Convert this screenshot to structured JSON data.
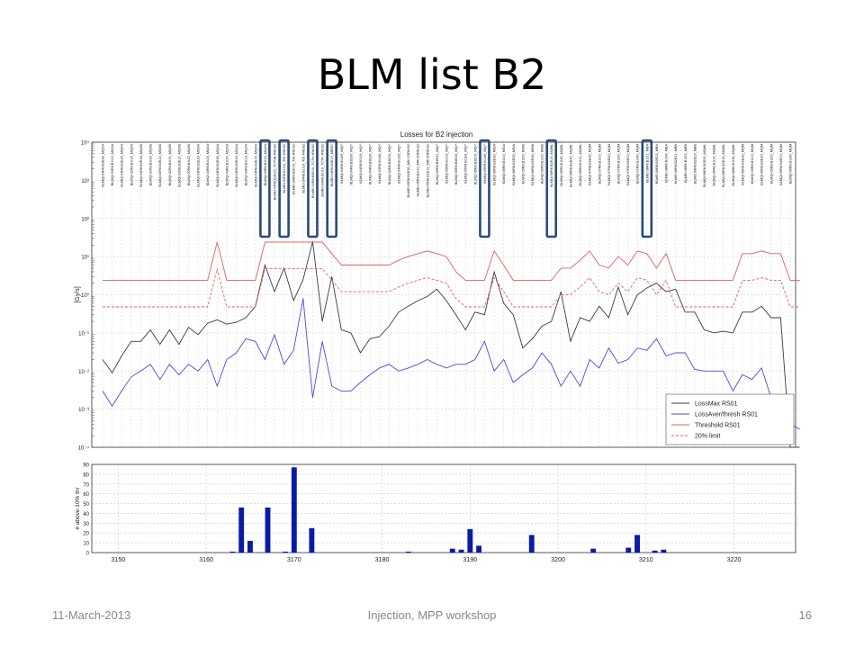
{
  "slide": {
    "title": "BLM list B2",
    "footer_date": "11-March-2013",
    "footer_event": "Injection, MPP workshop",
    "page_number": "16"
  },
  "colors": {
    "lossmax": "#3a3a3a",
    "lossaver": "#4a4ad8",
    "threshold": "#e06060",
    "limit": "#e06060",
    "bars": "#0a1aa8",
    "highlight": "#2a4a7a"
  },
  "chart_data": [
    {
      "type": "line",
      "title": "Losses for B2 injection",
      "ylabel": "[Gy/s]",
      "yscale": "log",
      "ylim": [
        0.0001,
        10000
      ],
      "y_ticks": [
        "10⁻⁴",
        "10⁻³",
        "10⁻²",
        "10⁻¹",
        "10⁰",
        "10¹",
        "10²",
        "10³",
        "10⁴"
      ],
      "grid": true,
      "legend_position": "lower-right",
      "monitor_labels": [
        "BLMQI.03R8.B2E30_MQXA",
        "BLMQI.03R8.B1I10_MQXA",
        "BLMQI.03R8.B2E20_MQXA",
        "BLMQI.02R8.B1I10_MQXA",
        "BLMQI.02R8.B2E30_MQXB",
        "BLMQI.02R8.B1I20_MQXB",
        "BLMQI.02R8.B2E22_MQXB",
        "BLMQI.02R8.B1I21_MQXB",
        "BLMQI.02R8.B2E21_MQXB",
        "BLMQI.02R8.B1I22_MQXB",
        "BLMQI.03R8.B2E23_MQXA",
        "BLMQI.03R8.B1I23_MQXA",
        "BLMQI.03R8.B2E30_MQXA",
        "BLMQI.03R8.B1I20_MQXA",
        "BLMQI.03R8.B2E20_MQXA",
        "BLMQI.03R8.B1I10_MQXA",
        "BLMQI.03R8.B2E10_MQXA",
        "BLMQI.03R8.B1I20_MQXA",
        "BLMEI.04R8.B2E20_TCTVB.4R8.B2",
        "BLMEI.04R8.B1I10_TDI.4R8.B2",
        "BLMEI.04R8.B2E10_TDI.4R8.B2",
        "BLMEI.04R8.B1I10_TDI.4R8.B2",
        "BLMEI.04R8.B2E10_TCTH.4R8.B2",
        "BLMEI.04R8.B1I10_TCTH.4R8.B2",
        "BLMEI.04R8.B2E10_MBRC",
        "BLMQI.04R8.B1I20_MQY",
        "BLMQI.04R8.B2E30_MQY",
        "BLMQI.04R8.B1I10_MQY",
        "BLMQI.04R8.B2E20_MQY",
        "BLMQI.04R8.B1I30_MQY",
        "BLMQI.04R8.B2E10_MQY",
        "BLMQI.04R8.B1I20_MQY",
        "BLMEI.05R8.B2E20_MKI.C5R8.B2",
        "BLMEI.05R8.B1I10_MKI.D5R8.B2",
        "BLMEI.05R8.B2E10_MKI.D5R8.B2",
        "BLMQI.05R8.B2E31_MQY",
        "BLMQI.05R8.B1I10_MQY",
        "BLMQI.05R8.B2E20_MQY",
        "BLMQI.05R8.B1I20_MQY",
        "BLMQI.05R8.B2E10_MQY",
        "BLMQI.05R8.B1I30_MQY",
        "BLMQI.06R8.B2E30_MSIA",
        "BLMQI.06R8.B1I10_MSIA",
        "BLMQI.06R8.B2E20_MSIA",
        "BLMQI.06R8.B1I20_MSIB",
        "BLMQI.06R8.B2E30_MSIB",
        "BLMQI.06R8.B1I10_MSIB",
        "BLMQI.06R8.B2E10_MQML",
        "BLMQI.06R8.B1I30_MQML",
        "BLMQI.06R8.B2E20_MQML",
        "BLMQI.06R8.B1I10_MQML",
        "BLMQI.07R8.B2E30_MQM",
        "BLMQI.07R8.B1I10_MQM",
        "BLMQI.07R8.B2E20_MQM",
        "BLMQI.07R8.B1I20_MQM",
        "BLMQI.07R8.B2E10_MQM",
        "BLMQI.07R8.B1I30_MQM",
        "BLMEI.08R8.B1I21_MBA",
        "BLMEI.08R8.B2E22_MBA",
        "BLMEI.08R8.B1I30_MBA",
        "BLMEI.08R8.B2E21_MBB",
        "BLMEI.08R8.B1I22_MBB",
        "BLMEI.08R8.B2E23_MBB",
        "BLMQI.08R8.B2E20_MQML",
        "BLMQI.08R8.B1I10_MQML",
        "BLMQI.08R8.B2E10_MQML",
        "BLMQI.08R8.B1I30_MQML",
        "BLMQI.09R8.B2E30_MQM",
        "BLMQI.09R8.B1I10_MQM",
        "BLMQI.09R8.B2E20_MQM",
        "BLMQI.09R8.B1I20_MQM",
        "BLMQI.09R8.B2E10_MQM",
        "BLMQI.09R8.B1I30_MQM"
      ],
      "series": [
        {
          "name": "LossMax RS01",
          "style": "solid",
          "values": [
            0.02,
            0.009,
            0.025,
            0.06,
            0.06,
            0.12,
            0.05,
            0.12,
            0.05,
            0.14,
            0.09,
            0.18,
            0.22,
            0.17,
            0.19,
            0.25,
            0.5,
            6,
            1.2,
            5,
            0.7,
            2.5,
            25,
            0.2,
            3,
            0.12,
            0.1,
            0.03,
            0.07,
            0.08,
            0.15,
            0.35,
            0.5,
            0.7,
            0.9,
            1.4,
            0.7,
            0.3,
            0.12,
            0.35,
            0.3,
            4,
            0.6,
            0.3,
            0.04,
            0.07,
            0.15,
            0.2,
            1.2,
            0.06,
            0.25,
            0.2,
            0.5,
            0.25,
            1.6,
            0.3,
            1,
            1.5,
            2,
            1.2,
            1.4,
            0.35,
            0.35,
            0.12,
            0.1,
            0.11,
            0.1,
            0.35,
            0.35,
            0.5,
            0.25,
            0.25,
            0.0001,
            0.0001
          ]
        },
        {
          "name": "LossAver/thresh RS01",
          "style": "solid",
          "values": [
            0.003,
            0.0012,
            0.003,
            0.007,
            0.01,
            0.015,
            0.006,
            0.015,
            0.008,
            0.015,
            0.01,
            0.02,
            0.004,
            0.02,
            0.03,
            0.07,
            0.06,
            0.02,
            0.09,
            0.015,
            0.035,
            0.8,
            0.002,
            0.06,
            0.004,
            0.003,
            0.003,
            0.005,
            0.008,
            0.012,
            0.015,
            0.01,
            0.012,
            0.015,
            0.02,
            0.015,
            0.012,
            0.015,
            0.015,
            0.02,
            0.06,
            0.01,
            0.02,
            0.005,
            0.008,
            0.012,
            0.03,
            0.015,
            0.004,
            0.01,
            0.004,
            0.02,
            0.012,
            0.04,
            0.016,
            0.02,
            0.04,
            0.035,
            0.07,
            0.025,
            0.03,
            0.03,
            0.011,
            0.01,
            0.01,
            0.01,
            0.003,
            0.008,
            0.006,
            0.012,
            0.002,
            0.0015,
            0.0004,
            0.0003
          ]
        },
        {
          "name": "Threshold RS01",
          "style": "solid",
          "values": [
            2.4,
            2.4,
            2.4,
            2.4,
            2.4,
            2.4,
            2.4,
            2.4,
            2.4,
            2.4,
            2.4,
            2.4,
            24,
            2.4,
            2.4,
            2.4,
            2.4,
            24,
            24,
            24,
            24,
            24,
            24,
            24,
            12,
            6,
            6,
            6,
            6,
            6,
            6,
            8,
            10,
            12,
            14,
            12,
            10,
            4,
            2.4,
            2.4,
            2.4,
            14,
            6,
            2.4,
            2.4,
            2.4,
            2.4,
            2.4,
            5,
            5,
            8,
            14,
            6,
            5,
            10,
            6,
            14,
            12,
            5,
            12,
            2.4,
            2.4,
            2.4,
            2.4,
            2.4,
            2.4,
            2.4,
            12,
            12,
            14,
            12,
            12,
            2.4,
            2.4
          ]
        },
        {
          "name": "20% limit",
          "style": "dashed",
          "values": [
            0.48,
            0.48,
            0.48,
            0.48,
            0.48,
            0.48,
            0.48,
            0.48,
            0.48,
            0.48,
            0.48,
            0.48,
            4.8,
            0.48,
            0.48,
            0.48,
            0.48,
            4.8,
            4.8,
            4.8,
            4.8,
            4.8,
            4.8,
            4.8,
            2.4,
            1.2,
            1.2,
            1.2,
            1.2,
            1.2,
            1.2,
            1.6,
            2,
            2.4,
            2.8,
            2.4,
            2,
            0.8,
            0.48,
            0.48,
            0.48,
            2.8,
            1.2,
            0.48,
            0.48,
            0.48,
            0.48,
            0.48,
            1,
            1,
            1.6,
            2.8,
            1.2,
            1,
            2,
            1.2,
            2.8,
            2.4,
            1,
            2.4,
            0.48,
            0.48,
            0.48,
            0.48,
            0.48,
            0.48,
            0.48,
            2.4,
            2.4,
            2.8,
            2.4,
            2.4,
            0.48,
            0.48
          ]
        }
      ]
    },
    {
      "type": "bar",
      "ylabel": "# above 10% thr",
      "xlim": [
        3147,
        3227
      ],
      "ylim": [
        0,
        90
      ],
      "x_ticks": [
        3150,
        3160,
        3170,
        3180,
        3190,
        3200,
        3210,
        3220
      ],
      "y_ticks": [
        0,
        10,
        20,
        30,
        40,
        50,
        60,
        70,
        80,
        90
      ],
      "grid": true,
      "x": [
        3163,
        3164,
        3165,
        3167,
        3169,
        3170,
        3172,
        3183,
        3188,
        3189,
        3190,
        3191,
        3197,
        3204,
        3208,
        3209,
        3211,
        3212
      ],
      "values": [
        1,
        46,
        12,
        46,
        1,
        87,
        25,
        1,
        4,
        3,
        24,
        7,
        18,
        4,
        5,
        18,
        2,
        3
      ]
    }
  ]
}
